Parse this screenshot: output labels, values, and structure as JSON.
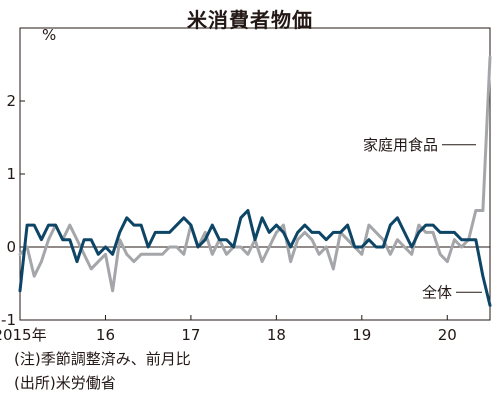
{
  "chart_data": {
    "type": "line",
    "title": "米消費者物価",
    "ylabel": "%",
    "ylim": [
      -1,
      3
    ],
    "yticks": [
      2,
      1,
      0,
      -1
    ],
    "xlim": [
      2015.0,
      2020.5
    ],
    "xticks": [
      {
        "value": 2015,
        "label": "2015年"
      },
      {
        "value": 2016,
        "label": "16"
      },
      {
        "value": 2017,
        "label": "17"
      },
      {
        "value": 2018,
        "label": "18"
      },
      {
        "value": 2019,
        "label": "19"
      },
      {
        "value": 2020,
        "label": "20"
      }
    ],
    "grid": false,
    "zero_line": true,
    "series": [
      {
        "name": "全体",
        "color": "#0d4566",
        "start": "2015-01",
        "values": [
          -0.6,
          0.3,
          0.3,
          0.1,
          0.3,
          0.3,
          0.1,
          0.1,
          -0.2,
          0.1,
          0.1,
          -0.1,
          0.0,
          -0.1,
          0.2,
          0.4,
          0.3,
          0.3,
          0.0,
          0.2,
          0.2,
          0.2,
          0.3,
          0.4,
          0.3,
          0.0,
          0.1,
          0.3,
          0.1,
          0.1,
          0.0,
          0.4,
          0.5,
          0.1,
          0.4,
          0.2,
          0.3,
          0.2,
          0.0,
          0.2,
          0.3,
          0.2,
          0.2,
          0.1,
          0.2,
          0.2,
          0.3,
          0.0,
          0.0,
          0.1,
          0.0,
          0.0,
          0.3,
          0.4,
          0.2,
          0.0,
          0.2,
          0.3,
          0.3,
          0.2,
          0.2,
          0.2,
          0.1,
          0.1,
          0.1,
          -0.4,
          -0.8
        ]
      },
      {
        "name": "家庭用食品",
        "color": "#a5a6aa",
        "start": "2015-01",
        "values": [
          -0.1,
          0.0,
          -0.4,
          -0.2,
          0.1,
          0.3,
          0.1,
          0.3,
          0.1,
          -0.1,
          -0.3,
          -0.2,
          -0.1,
          -0.6,
          0.1,
          -0.1,
          -0.2,
          -0.1,
          -0.1,
          -0.1,
          -0.1,
          0.0,
          0.0,
          -0.1,
          0.3,
          0.0,
          0.2,
          -0.1,
          0.1,
          -0.1,
          0.0,
          0.0,
          -0.1,
          0.1,
          -0.2,
          0.0,
          0.2,
          0.3,
          -0.2,
          0.1,
          0.2,
          0.1,
          -0.1,
          0.0,
          -0.3,
          0.2,
          0.1,
          0.0,
          -0.1,
          0.3,
          0.2,
          0.1,
          -0.1,
          0.1,
          0.0,
          -0.1,
          0.3,
          0.2,
          0.2,
          -0.1,
          -0.2,
          0.1,
          0.0,
          0.1,
          0.5,
          0.5,
          2.6
        ]
      }
    ]
  },
  "labels": {
    "overall": "全体",
    "food": "家庭用食品"
  },
  "notes": {
    "note1": "(注)季節調整済み、前月比",
    "note2": "(出所)米労働省"
  }
}
